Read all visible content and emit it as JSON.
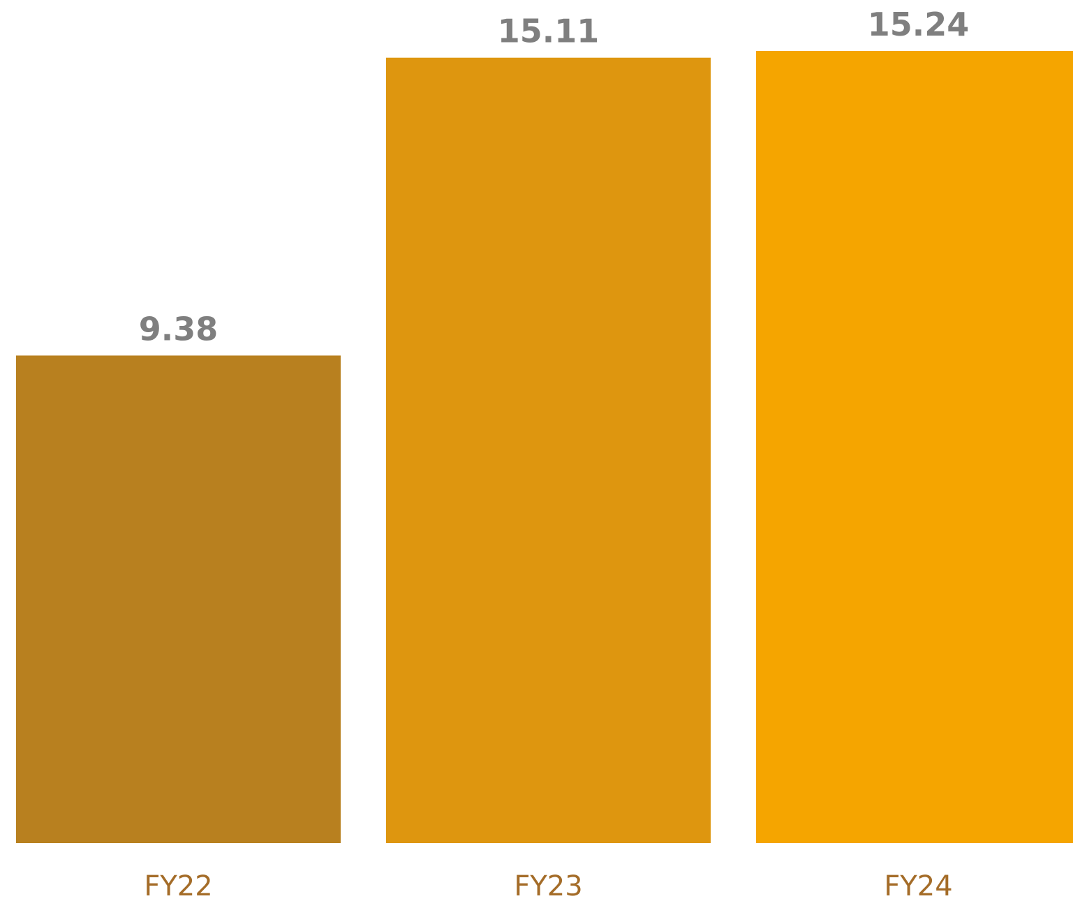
{
  "chart_data": {
    "type": "bar",
    "categories": [
      "FY22",
      "FY23",
      "FY24"
    ],
    "values": [
      9.38,
      15.11,
      15.24
    ],
    "value_labels": [
      "9.38",
      "15.11",
      "15.24"
    ],
    "bar_colors": [
      "#b8801f",
      "#de960f",
      "#f5a500"
    ],
    "category_label_color": "#a46c28",
    "value_label_color": "#7f7f7f",
    "title": "",
    "xlabel": "",
    "ylabel": "",
    "ylim": [
      0,
      15.24
    ],
    "grid": false,
    "legend": "none"
  }
}
